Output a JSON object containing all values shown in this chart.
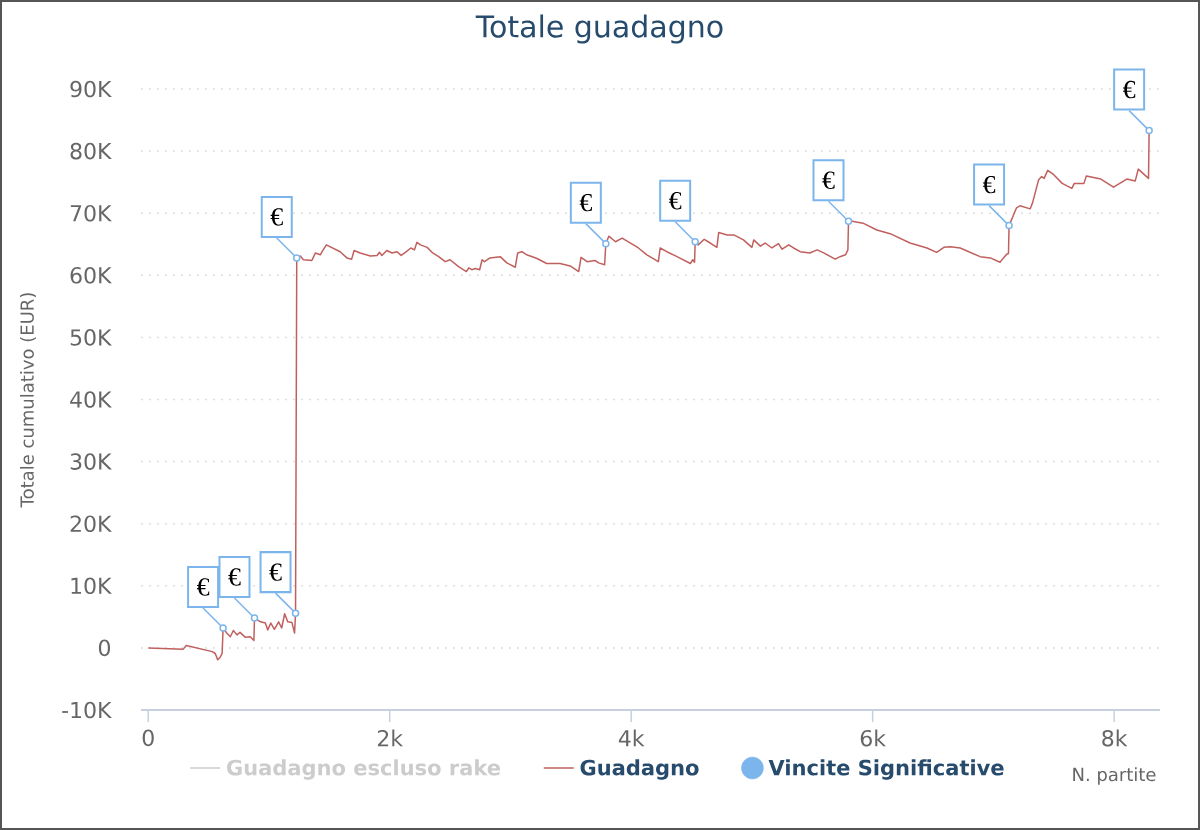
{
  "chart_data": {
    "type": "line",
    "title": "Totale guadagno",
    "xlabel": "N. partite",
    "ylabel": "Totale cumulativo (EUR)",
    "xlim": [
      -60,
      8380
    ],
    "ylim": [
      -10000,
      90000
    ],
    "xticks": [
      0,
      {
        "value": 2000,
        "label": "2k"
      },
      {
        "value": 4000,
        "label": "4k"
      },
      {
        "value": 6000,
        "label": "6k"
      },
      {
        "value": 8000,
        "label": "8k"
      }
    ],
    "yticks": [
      {
        "value": -10000,
        "label": "-10K"
      },
      0,
      {
        "value": 10000,
        "label": "10K"
      },
      {
        "value": 20000,
        "label": "20K"
      },
      {
        "value": 30000,
        "label": "30K"
      },
      {
        "value": 40000,
        "label": "40K"
      },
      {
        "value": 50000,
        "label": "50K"
      },
      {
        "value": 60000,
        "label": "60K"
      },
      {
        "value": 70000,
        "label": "70K"
      },
      {
        "value": 80000,
        "label": "80K"
      },
      {
        "value": 90000,
        "label": "90K"
      }
    ],
    "grid": "y",
    "legend": "bottom",
    "series": [
      {
        "name": "Guadagno escluso rake",
        "color": "#cccccc"
      },
      {
        "name": "Guadagno",
        "color": "#c0605e",
        "x": [
          0,
          290,
          315,
          530,
          555,
          575,
          596,
          612,
          620,
          650,
          680,
          705,
          735,
          760,
          805,
          845,
          875,
          880,
          930,
          970,
          990,
          1015,
          1045,
          1080,
          1105,
          1130,
          1155,
          1190,
          1212,
          1220,
          1230,
          1260,
          1285,
          1355,
          1385,
          1425,
          1440,
          1475,
          1590,
          1645,
          1685,
          1705,
          1755,
          1840,
          1895,
          1915,
          1935,
          1975,
          2020,
          2060,
          2095,
          2130,
          2175,
          2205,
          2225,
          2255,
          2310,
          2350,
          2405,
          2460,
          2500,
          2570,
          2635,
          2655,
          2680,
          2710,
          2745,
          2765,
          2785,
          2830,
          2915,
          2970,
          3040,
          3060,
          3095,
          3135,
          3220,
          3300,
          3410,
          3495,
          3565,
          3585,
          3635,
          3700,
          3730,
          3780,
          3790,
          3815,
          3870,
          3925,
          4060,
          4130,
          4225,
          4240,
          4295,
          4380,
          4490,
          4510,
          4525,
          4530,
          4555,
          4605,
          4655,
          4710,
          4725,
          4795,
          4850,
          4930,
          5000,
          5015,
          5070,
          5110,
          5165,
          5220,
          5250,
          5305,
          5345,
          5400,
          5480,
          5540,
          5595,
          5690,
          5730,
          5775,
          5795,
          5800,
          5830,
          5920,
          6035,
          6145,
          6310,
          6450,
          6530,
          6590,
          6645,
          6725,
          6890,
          6975,
          7055,
          7075,
          7110,
          7125,
          7130,
          7190,
          7220,
          7305,
          7325,
          7375,
          7400,
          7420,
          7450,
          7500,
          7570,
          7650,
          7670,
          7750,
          7770,
          7890,
          7995,
          8105,
          8175,
          8200,
          8285,
          8290
        ],
        "values": [
          0,
          -200,
          400,
          -600,
          -900,
          -1900,
          -1500,
          -900,
          3200,
          2400,
          1800,
          2800,
          2100,
          2500,
          1700,
          1800,
          1200,
          4800,
          4200,
          4000,
          2900,
          4000,
          3000,
          4200,
          3200,
          5500,
          4200,
          4100,
          2400,
          5600,
          62800,
          63100,
          62500,
          62400,
          63600,
          63300,
          63800,
          64900,
          63800,
          62800,
          62600,
          64000,
          63600,
          63100,
          63200,
          63700,
          63200,
          64000,
          63600,
          63800,
          63200,
          63700,
          64400,
          64100,
          65300,
          64900,
          64500,
          63700,
          63000,
          62200,
          62500,
          61400,
          60600,
          61200,
          60900,
          61100,
          60900,
          62500,
          62200,
          62800,
          63000,
          62000,
          61300,
          63600,
          63800,
          63300,
          62700,
          61900,
          61900,
          61500,
          60600,
          62900,
          62200,
          62400,
          62000,
          61700,
          65100,
          66300,
          65400,
          66000,
          64400,
          63300,
          62200,
          64400,
          63800,
          63000,
          61900,
          62500,
          62100,
          65400,
          64900,
          65800,
          65200,
          64500,
          66900,
          66500,
          66500,
          65700,
          64500,
          65700,
          64700,
          65200,
          64400,
          65100,
          64200,
          64900,
          64400,
          63800,
          63600,
          64100,
          63600,
          62600,
          63000,
          63300,
          64100,
          68700,
          68700,
          68400,
          67300,
          66700,
          65200,
          64400,
          63700,
          64500,
          64600,
          64400,
          63000,
          62800,
          62100,
          62600,
          63400,
          63500,
          68000,
          70800,
          71200,
          70700,
          71700,
          75400,
          75900,
          75600,
          76900,
          76200,
          74800,
          74000,
          74800,
          74800,
          76000,
          75500,
          74200,
          75500,
          75200,
          77100,
          75600,
          83300
        ]
      },
      {
        "name": "Vincite Significative",
        "type": "scatter",
        "marker": "circle",
        "color": "#7cb5ec",
        "x": [
          620,
          880,
          1220,
          1230,
          3790,
          4530,
          5800,
          7130,
          8290
        ],
        "values": [
          3200,
          4800,
          5600,
          62800,
          65100,
          65400,
          68700,
          68000,
          83300
        ]
      }
    ],
    "annotations": [
      {
        "text": "€",
        "x": 620,
        "y": 3200
      },
      {
        "text": "€",
        "x": 880,
        "y": 4800
      },
      {
        "text": "€",
        "x": 1220,
        "y": 5600
      },
      {
        "text": "€",
        "x": 1230,
        "y": 62800
      },
      {
        "text": "€",
        "x": 3790,
        "y": 65100
      },
      {
        "text": "€",
        "x": 4530,
        "y": 65400
      },
      {
        "text": "€",
        "x": 5800,
        "y": 68700
      },
      {
        "text": "€",
        "x": 7130,
        "y": 68000
      },
      {
        "text": "€",
        "x": 8290,
        "y": 83300
      }
    ]
  }
}
